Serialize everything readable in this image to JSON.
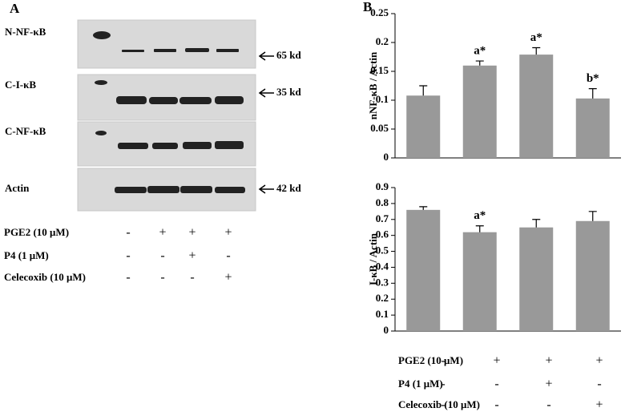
{
  "panel_a": {
    "label": "A",
    "blots": [
      {
        "name": "N-NF-κB",
        "size": "65 kd"
      },
      {
        "name": "C-I-κB",
        "size": "35 kd"
      },
      {
        "name": "C-NF-κB"
      },
      {
        "name": "Actin",
        "size": "42 kd"
      }
    ],
    "treatments": [
      {
        "label": "PGE2 (10 μM)",
        "signs": [
          "-",
          "+",
          "+",
          "+"
        ]
      },
      {
        "label": "P4 (1 μM)",
        "signs": [
          "-",
          "-",
          "+",
          "-"
        ]
      },
      {
        "label": "Celecoxib (10  μM)",
        "signs": [
          "-",
          "-",
          "-",
          "+"
        ]
      }
    ]
  },
  "panel_b": {
    "label": "B",
    "treatments": [
      {
        "label": "PGE2 (10 μM)",
        "signs": [
          "-",
          "+",
          "+",
          "+"
        ]
      },
      {
        "label": "P4 (1 μM)",
        "signs": [
          "-",
          "-",
          "+",
          "-"
        ]
      },
      {
        "label": "Celecoxib (10  μM)",
        "signs": [
          "-",
          "-",
          "-",
          "+"
        ]
      }
    ]
  },
  "chart_data": [
    {
      "type": "bar",
      "y_label": "nNF-κB / Actin",
      "color": "#999999",
      "values": [
        0.108,
        0.16,
        0.179,
        0.103
      ],
      "errors": [
        0.017,
        0.008,
        0.012,
        0.017
      ],
      "annotations": [
        null,
        "a*",
        "a*",
        "b*"
      ],
      "ylim": [
        0,
        0.25
      ],
      "yticks": [
        0,
        0.05,
        0.1,
        0.15,
        0.2,
        0.25
      ]
    },
    {
      "type": "bar",
      "y_label": "I-κB / Actin",
      "color": "#999999",
      "values": [
        0.76,
        0.62,
        0.65,
        0.69
      ],
      "errors": [
        0.02,
        0.04,
        0.05,
        0.06
      ],
      "annotations": [
        null,
        "a*",
        null,
        null
      ],
      "ylim": [
        0,
        0.9
      ],
      "yticks": [
        0,
        0.1,
        0.2,
        0.3,
        0.4,
        0.5,
        0.6,
        0.7,
        0.8,
        0.9
      ]
    }
  ]
}
